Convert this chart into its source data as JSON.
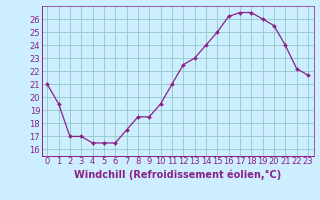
{
  "x": [
    0,
    1,
    2,
    3,
    4,
    5,
    6,
    7,
    8,
    9,
    10,
    11,
    12,
    13,
    14,
    15,
    16,
    17,
    18,
    19,
    20,
    21,
    22,
    23
  ],
  "y": [
    21.0,
    19.5,
    17.0,
    17.0,
    16.5,
    16.5,
    16.5,
    17.5,
    18.5,
    18.5,
    19.5,
    21.0,
    22.5,
    23.0,
    24.0,
    25.0,
    26.2,
    26.5,
    26.5,
    26.0,
    25.5,
    24.0,
    22.2,
    21.7
  ],
  "line_color": "#882288",
  "marker_color": "#882288",
  "bg_color": "#cceeff",
  "grid_color": "#99cccc",
  "xlabel": "Windchill (Refroidissement éolien,°C)",
  "ylabel": "",
  "xlim": [
    -0.5,
    23.5
  ],
  "ylim": [
    15.5,
    27.0
  ],
  "yticks": [
    16,
    17,
    18,
    19,
    20,
    21,
    22,
    23,
    24,
    25,
    26
  ],
  "xticks": [
    0,
    1,
    2,
    3,
    4,
    5,
    6,
    7,
    8,
    9,
    10,
    11,
    12,
    13,
    14,
    15,
    16,
    17,
    18,
    19,
    20,
    21,
    22,
    23
  ],
  "tick_label_color": "#882288",
  "axis_color": "#882288",
  "xlabel_fontsize": 7.0,
  "tick_fontsize": 6.0
}
